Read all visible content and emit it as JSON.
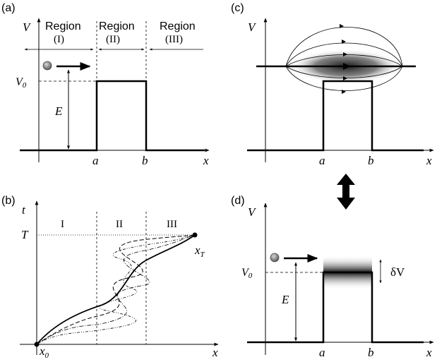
{
  "colors": {
    "ink": "#000000",
    "particle": "#7a7a7a",
    "smear": "#2a2a2a"
  },
  "panel_a": {
    "label": "(a)",
    "v_axis": "V",
    "x_axis": "x",
    "regions": [
      {
        "name": "Region",
        "numeral": "(I)"
      },
      {
        "name": "Region",
        "numeral": "(II)"
      },
      {
        "name": "Region",
        "numeral": "(III)"
      }
    ],
    "v0_label": "V",
    "v0_sub": "0",
    "e_label": "E",
    "a_label": "a",
    "b_label": "b"
  },
  "panel_b": {
    "label": "(b)",
    "t_axis": "t",
    "x_axis": "x",
    "regions": [
      "I",
      "II",
      "III"
    ],
    "t_label": "T",
    "xt_label": "x",
    "xt_sub": "T",
    "x0_label": "x",
    "x0_sub": "0"
  },
  "panel_c": {
    "label": "(c)",
    "v_axis": "V",
    "x_axis": "x",
    "a_label": "a",
    "b_label": "b"
  },
  "panel_d": {
    "label": "(d)",
    "v_axis": "V",
    "x_axis": "x",
    "v0_label": "V",
    "v0_sub": "0",
    "e_label": "E",
    "dv_label": "δV",
    "a_label": "a",
    "b_label": "b"
  }
}
